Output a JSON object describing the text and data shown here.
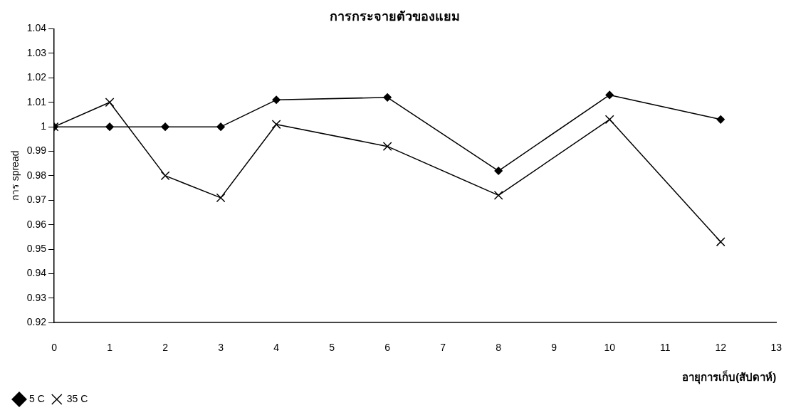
{
  "chart_data": {
    "type": "line",
    "title": "การกระจายตัวของแยม",
    "xlabel": "อายุการเก็บ(สัปดาห์)",
    "ylabel": "การ spread",
    "x": [
      0,
      1,
      2,
      3,
      4,
      6,
      8,
      10,
      12
    ],
    "series": [
      {
        "name": "5 C",
        "color": "#000000",
        "marker": "diamond",
        "values": [
          1.0,
          1.0,
          1.0,
          1.0,
          1.011,
          1.012,
          0.982,
          1.013,
          1.003
        ]
      },
      {
        "name": "35 C",
        "color": "#000000",
        "marker": "cross",
        "values": [
          1.0,
          1.01,
          0.98,
          0.971,
          1.001,
          0.992,
          0.972,
          1.003,
          0.953
        ]
      }
    ],
    "xlim": [
      0,
      13
    ],
    "xticks": [
      0,
      1,
      2,
      3,
      4,
      5,
      6,
      7,
      8,
      9,
      10,
      11,
      12,
      13
    ],
    "ylim": [
      0.92,
      1.04
    ],
    "yticks": [
      0.92,
      0.93,
      0.94,
      0.95,
      0.96,
      0.97,
      0.98,
      0.99,
      1,
      1.01,
      1.02,
      1.03,
      1.04
    ],
    "grid": false,
    "legend": "bottom left",
    "line_style": "solid"
  }
}
